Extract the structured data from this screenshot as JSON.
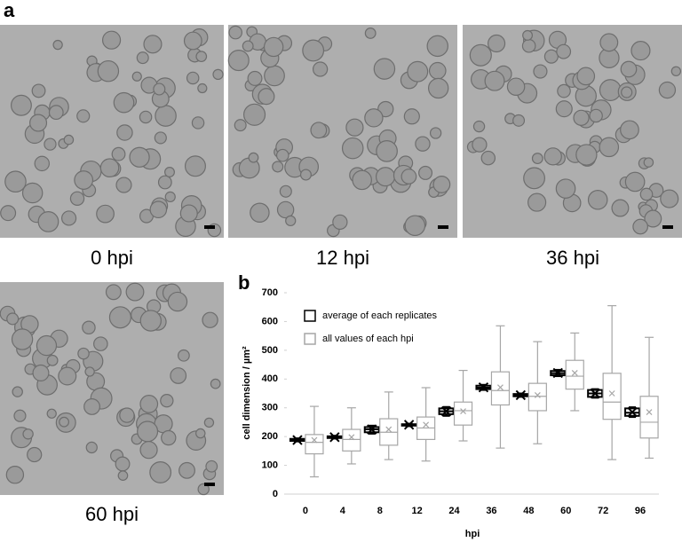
{
  "panel_a": {
    "label": "a",
    "captions": [
      "0 hpi",
      "12 hpi",
      "36 hpi",
      "60 hpi"
    ]
  },
  "chart_data": {
    "type": "box",
    "panel_label": "b",
    "y_label": "cell dimension / µm²",
    "x_label": "hpi",
    "categories": [
      "0",
      "4",
      "8",
      "12",
      "24",
      "36",
      "48",
      "60",
      "72",
      "96"
    ],
    "ylim": [
      0,
      700
    ],
    "yticks": [
      0,
      100,
      200,
      300,
      400,
      500,
      600,
      700
    ],
    "series": [
      {
        "name": "average of each replicates",
        "color": "#000000",
        "boxes": [
          {
            "min": 183,
            "q1": 185,
            "median": 188,
            "q3": 192,
            "max": 194,
            "mean": 188
          },
          {
            "min": 193,
            "q1": 195,
            "median": 198,
            "q3": 201,
            "max": 203,
            "mean": 198
          },
          {
            "min": 210,
            "q1": 215,
            "median": 225,
            "q3": 233,
            "max": 238,
            "mean": 225
          },
          {
            "min": 236,
            "q1": 238,
            "median": 241,
            "q3": 243,
            "max": 245,
            "mean": 241
          },
          {
            "min": 272,
            "q1": 278,
            "median": 288,
            "q3": 298,
            "max": 303,
            "mean": 288
          },
          {
            "min": 362,
            "q1": 365,
            "median": 370,
            "q3": 377,
            "max": 380,
            "mean": 371
          },
          {
            "min": 338,
            "q1": 340,
            "median": 344,
            "q3": 348,
            "max": 350,
            "mean": 344
          },
          {
            "min": 410,
            "q1": 413,
            "median": 420,
            "q3": 428,
            "max": 432,
            "mean": 421
          },
          {
            "min": 335,
            "q1": 338,
            "median": 350,
            "q3": 362,
            "max": 365,
            "mean": 350
          },
          {
            "min": 268,
            "q1": 272,
            "median": 283,
            "q3": 298,
            "max": 302,
            "mean": 285
          }
        ]
      },
      {
        "name": "all values of each hpi",
        "color": "#a6a6a6",
        "boxes": [
          {
            "min": 60,
            "q1": 140,
            "median": 180,
            "q3": 207,
            "max": 305,
            "mean": 188
          },
          {
            "min": 105,
            "q1": 150,
            "median": 190,
            "q3": 225,
            "max": 300,
            "mean": 198
          },
          {
            "min": 120,
            "q1": 170,
            "median": 215,
            "q3": 262,
            "max": 355,
            "mean": 225
          },
          {
            "min": 115,
            "q1": 190,
            "median": 230,
            "q3": 268,
            "max": 370,
            "mean": 241
          },
          {
            "min": 185,
            "q1": 240,
            "median": 290,
            "q3": 320,
            "max": 430,
            "mean": 288
          },
          {
            "min": 160,
            "q1": 310,
            "median": 360,
            "q3": 425,
            "max": 585,
            "mean": 371
          },
          {
            "min": 175,
            "q1": 290,
            "median": 340,
            "q3": 385,
            "max": 530,
            "mean": 344
          },
          {
            "min": 290,
            "q1": 365,
            "median": 410,
            "q3": 465,
            "max": 560,
            "mean": 421
          },
          {
            "min": 120,
            "q1": 260,
            "median": 320,
            "q3": 420,
            "max": 655,
            "mean": 350
          },
          {
            "min": 125,
            "q1": 195,
            "median": 250,
            "q3": 340,
            "max": 545,
            "mean": 285
          }
        ]
      }
    ]
  }
}
